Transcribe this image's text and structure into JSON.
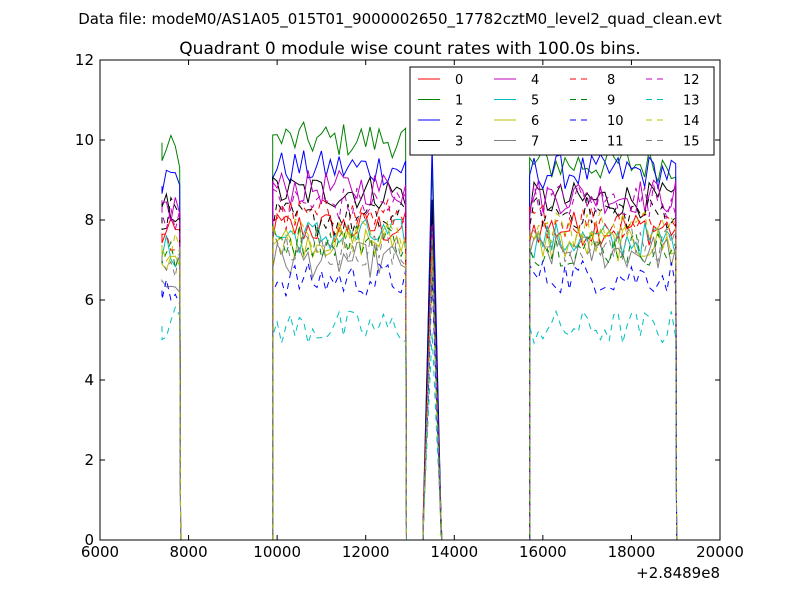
{
  "chart_data": {
    "type": "line",
    "suptitle": "Data file: modeM0/AS1A05_015T01_9000002650_17782cztM0_level2_quad_clean.evt",
    "title": "Quadrant 0 module wise count rates with 100.0s bins.",
    "xlabel": "",
    "ylabel": "",
    "x_offset_label": "+2.8489e8",
    "xlim": [
      6000,
      20000
    ],
    "ylim": [
      0,
      12
    ],
    "xticks": [
      6000,
      8000,
      10000,
      12000,
      14000,
      16000,
      18000,
      20000
    ],
    "yticks": [
      0,
      2,
      4,
      6,
      8,
      10,
      12
    ],
    "grid": false,
    "legend_position": "top-right",
    "legend_columns": 4,
    "segments": [
      {
        "start": 7400,
        "end": 7800
      },
      {
        "start": 9900,
        "end": 12900
      },
      {
        "start": 13300,
        "end": 13700
      },
      {
        "start": 15700,
        "end": 19000
      }
    ],
    "series": [
      {
        "name": "0",
        "color": "#ff0000",
        "dash": "solid",
        "base": [
          7.6,
          7.8,
          7.5,
          7.8
        ]
      },
      {
        "name": "1",
        "color": "#008000",
        "dash": "solid",
        "base": [
          9.75,
          10.0,
          9.6,
          9.4
        ]
      },
      {
        "name": "2",
        "color": "#0000ff",
        "dash": "solid",
        "base": [
          9.0,
          9.3,
          9.8,
          9.2
        ]
      },
      {
        "name": "3",
        "color": "#000000",
        "dash": "solid",
        "base": [
          8.3,
          8.7,
          8.7,
          8.5
        ]
      },
      {
        "name": "4",
        "color": "#bf00bf",
        "dash": "solid",
        "base": [
          8.3,
          8.8,
          8.2,
          8.6
        ]
      },
      {
        "name": "5",
        "color": "#00bfbf",
        "dash": "solid",
        "base": [
          7.2,
          7.6,
          7.3,
          7.5
        ]
      },
      {
        "name": "6",
        "color": "#bfbf00",
        "dash": "solid",
        "base": [
          7.2,
          7.5,
          7.0,
          7.4
        ]
      },
      {
        "name": "7",
        "color": "#808080",
        "dash": "solid",
        "base": [
          6.4,
          7.0,
          6.8,
          7.2
        ]
      },
      {
        "name": "8",
        "color": "#ff0000",
        "dash": "dashed",
        "base": [
          7.4,
          8.1,
          7.8,
          8.0
        ]
      },
      {
        "name": "9",
        "color": "#008000",
        "dash": "dashed",
        "base": [
          7.1,
          7.5,
          7.4,
          7.3
        ]
      },
      {
        "name": "10",
        "color": "#0000ff",
        "dash": "dashed",
        "base": [
          6.1,
          6.5,
          6.6,
          6.6
        ]
      },
      {
        "name": "11",
        "color": "#000000",
        "dash": "dashed",
        "base": [
          8.2,
          8.0,
          8.1,
          8.2
        ]
      },
      {
        "name": "12",
        "color": "#bf00bf",
        "dash": "dashed",
        "base": [
          8.2,
          8.4,
          8.0,
          8.5
        ]
      },
      {
        "name": "13",
        "color": "#00bfbf",
        "dash": "dashed",
        "base": [
          5.4,
          5.3,
          5.4,
          5.3
        ]
      },
      {
        "name": "14",
        "color": "#bfbf00",
        "dash": "dashed",
        "base": [
          7.3,
          7.6,
          7.3,
          7.8
        ]
      },
      {
        "name": "15",
        "color": "#808080",
        "dash": "dashed",
        "base": [
          7.0,
          7.3,
          7.5,
          7.4
        ]
      }
    ]
  }
}
